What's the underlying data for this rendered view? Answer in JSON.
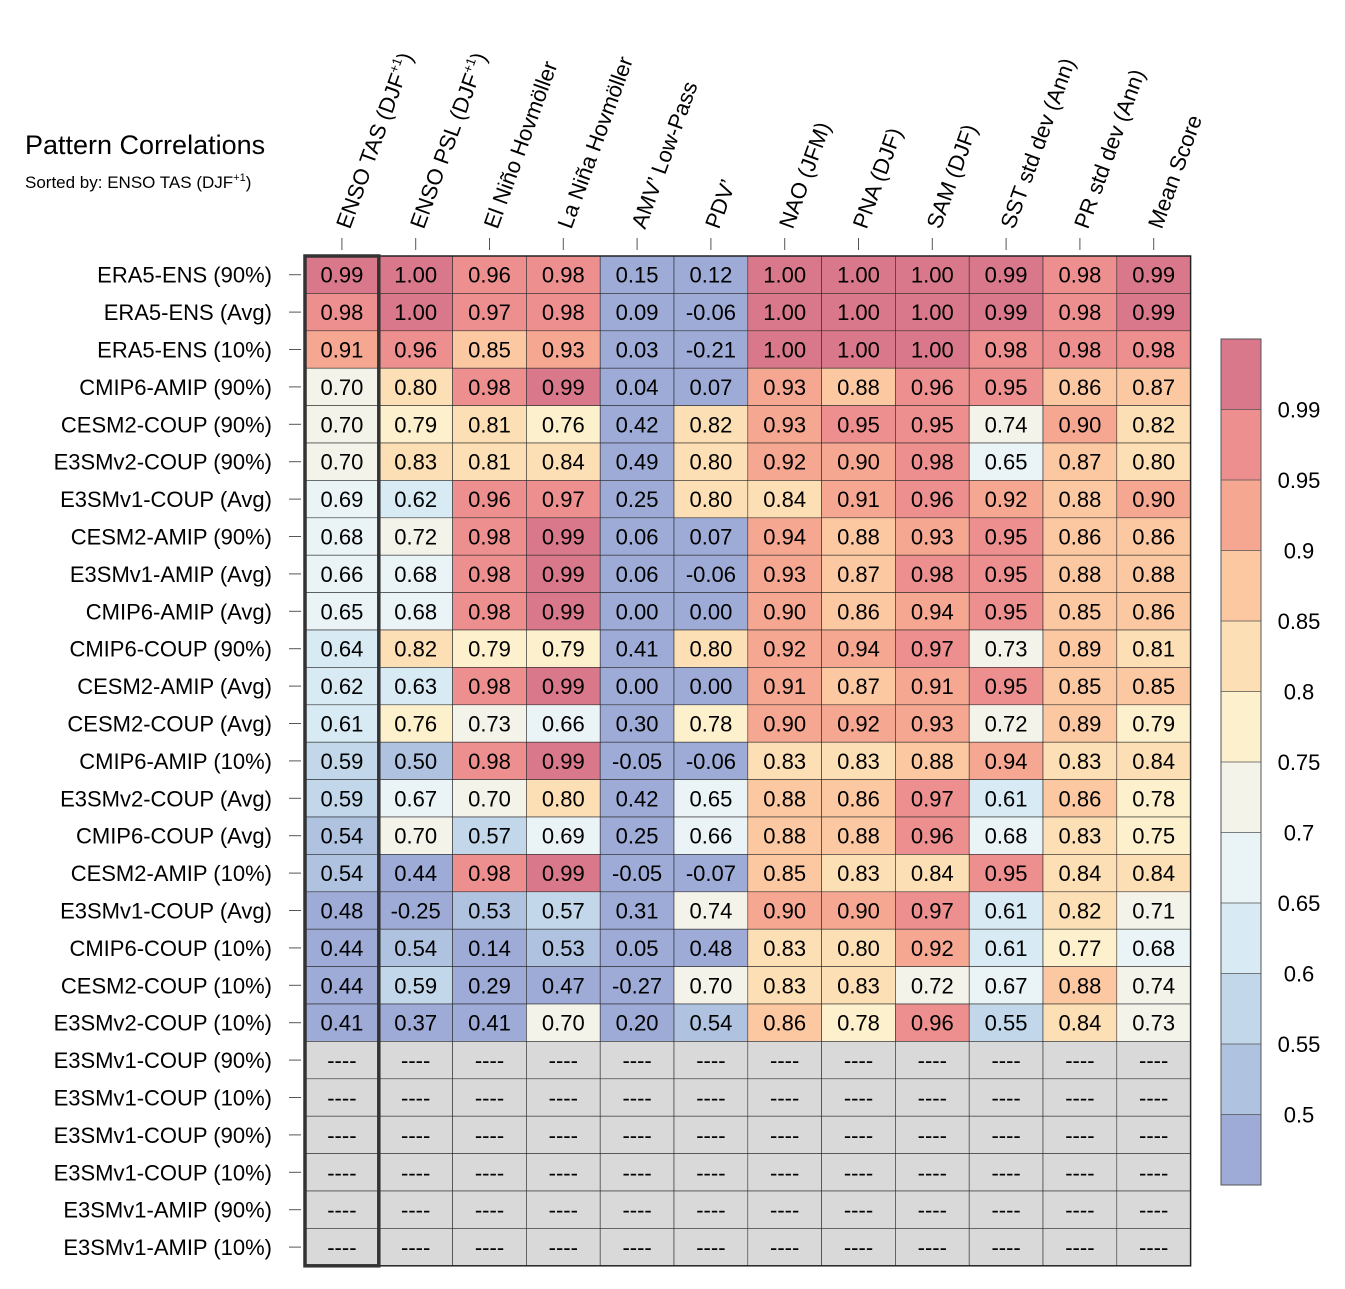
{
  "chart_data": {
    "type": "heatmap",
    "title": "Pattern Correlations",
    "subtitle_prefix": "Sorted by: ENSO TAS (DJF",
    "subtitle_sup": "+1",
    "subtitle_suffix": ")",
    "missing_label": "----",
    "columns": [
      {
        "label": "ENSO TAS (DJF",
        "sup": "+1",
        "suffix": ")"
      },
      {
        "label": "ENSO PSL (DJF",
        "sup": "+1",
        "suffix": ")"
      },
      {
        "label": "El Niño Hovmöller"
      },
      {
        "label": "La Niña Hovmöller"
      },
      {
        "label": "AMV’ Low-Pass"
      },
      {
        "label": "PDV’"
      },
      {
        "label": "NAO (JFM)"
      },
      {
        "label": "PNA (DJF)"
      },
      {
        "label": "SAM (DJF)"
      },
      {
        "label": "SST std dev (Ann)"
      },
      {
        "label": "PR std dev (Ann)"
      },
      {
        "label": "Mean Score"
      }
    ],
    "sorted_column_index": 0,
    "rows": [
      {
        "name": "ERA5-ENS (90%)",
        "values": [
          0.99,
          1.0,
          0.96,
          0.98,
          0.15,
          0.12,
          1.0,
          1.0,
          1.0,
          0.99,
          0.98,
          0.99
        ]
      },
      {
        "name": "ERA5-ENS (Avg)",
        "values": [
          0.98,
          1.0,
          0.97,
          0.98,
          0.09,
          -0.06,
          1.0,
          1.0,
          1.0,
          0.99,
          0.98,
          0.99
        ]
      },
      {
        "name": "ERA5-ENS (10%)",
        "values": [
          0.91,
          0.96,
          0.85,
          0.93,
          0.03,
          -0.21,
          1.0,
          1.0,
          1.0,
          0.98,
          0.98,
          0.98
        ]
      },
      {
        "name": "CMIP6-AMIP (90%)",
        "values": [
          0.7,
          0.8,
          0.98,
          0.99,
          0.04,
          0.07,
          0.93,
          0.88,
          0.96,
          0.95,
          0.86,
          0.87
        ]
      },
      {
        "name": "CESM2-COUP (90%)",
        "values": [
          0.7,
          0.79,
          0.81,
          0.76,
          0.42,
          0.82,
          0.93,
          0.95,
          0.95,
          0.74,
          0.9,
          0.82
        ]
      },
      {
        "name": "E3SMv2-COUP (90%)",
        "values": [
          0.7,
          0.83,
          0.81,
          0.84,
          0.49,
          0.8,
          0.92,
          0.9,
          0.98,
          0.65,
          0.87,
          0.8
        ]
      },
      {
        "name": "E3SMv1-COUP (Avg)",
        "values": [
          0.69,
          0.62,
          0.96,
          0.97,
          0.25,
          0.8,
          0.84,
          0.91,
          0.96,
          0.92,
          0.88,
          0.9
        ]
      },
      {
        "name": "CESM2-AMIP (90%)",
        "values": [
          0.68,
          0.72,
          0.98,
          0.99,
          0.06,
          0.07,
          0.94,
          0.88,
          0.93,
          0.95,
          0.86,
          0.86
        ]
      },
      {
        "name": "E3SMv1-AMIP (Avg)",
        "values": [
          0.66,
          0.68,
          0.98,
          0.99,
          0.06,
          -0.06,
          0.93,
          0.87,
          0.98,
          0.95,
          0.88,
          0.88
        ]
      },
      {
        "name": "CMIP6-AMIP (Avg)",
        "values": [
          0.65,
          0.68,
          0.98,
          0.99,
          0.0,
          0.0,
          0.9,
          0.86,
          0.94,
          0.95,
          0.85,
          0.86
        ]
      },
      {
        "name": "CMIP6-COUP (90%)",
        "values": [
          0.64,
          0.82,
          0.79,
          0.79,
          0.41,
          0.8,
          0.92,
          0.94,
          0.97,
          0.73,
          0.89,
          0.81
        ]
      },
      {
        "name": "CESM2-AMIP (Avg)",
        "values": [
          0.62,
          0.63,
          0.98,
          0.99,
          -0.0,
          0.0,
          0.91,
          0.87,
          0.91,
          0.95,
          0.85,
          0.85
        ]
      },
      {
        "name": "CESM2-COUP (Avg)",
        "values": [
          0.61,
          0.76,
          0.73,
          0.66,
          0.3,
          0.78,
          0.9,
          0.92,
          0.93,
          0.72,
          0.89,
          0.79
        ]
      },
      {
        "name": "CMIP6-AMIP (10%)",
        "values": [
          0.59,
          0.5,
          0.98,
          0.99,
          -0.05,
          -0.06,
          0.83,
          0.83,
          0.88,
          0.94,
          0.83,
          0.84
        ]
      },
      {
        "name": "E3SMv2-COUP (Avg)",
        "values": [
          0.59,
          0.67,
          0.7,
          0.8,
          0.42,
          0.65,
          0.88,
          0.86,
          0.97,
          0.61,
          0.86,
          0.78
        ]
      },
      {
        "name": "CMIP6-COUP (Avg)",
        "values": [
          0.54,
          0.7,
          0.57,
          0.69,
          0.25,
          0.66,
          0.88,
          0.88,
          0.96,
          0.68,
          0.83,
          0.75
        ]
      },
      {
        "name": "CESM2-AMIP (10%)",
        "values": [
          0.54,
          0.44,
          0.98,
          0.99,
          -0.05,
          -0.07,
          0.85,
          0.83,
          0.84,
          0.95,
          0.84,
          0.84
        ]
      },
      {
        "name": "E3SMv1-COUP (Avg)",
        "values": [
          0.48,
          -0.25,
          0.53,
          0.57,
          0.31,
          0.74,
          0.9,
          0.9,
          0.97,
          0.61,
          0.82,
          0.71
        ]
      },
      {
        "name": "CMIP6-COUP (10%)",
        "values": [
          0.44,
          0.54,
          0.14,
          0.53,
          0.05,
          0.48,
          0.83,
          0.8,
          0.92,
          0.61,
          0.77,
          0.68
        ]
      },
      {
        "name": "CESM2-COUP (10%)",
        "values": [
          0.44,
          0.59,
          0.29,
          0.47,
          -0.27,
          0.7,
          0.83,
          0.83,
          0.72,
          0.67,
          0.88,
          0.74
        ]
      },
      {
        "name": "E3SMv2-COUP (10%)",
        "values": [
          0.41,
          0.37,
          0.41,
          0.7,
          0.2,
          0.54,
          0.86,
          0.78,
          0.96,
          0.55,
          0.84,
          0.73
        ]
      },
      {
        "name": "E3SMv1-COUP (90%)",
        "values": [
          null,
          null,
          null,
          null,
          null,
          null,
          null,
          null,
          null,
          null,
          null,
          null
        ]
      },
      {
        "name": "E3SMv1-COUP (10%)",
        "values": [
          null,
          null,
          null,
          null,
          null,
          null,
          null,
          null,
          null,
          null,
          null,
          null
        ]
      },
      {
        "name": "E3SMv1-COUP (90%)",
        "values": [
          null,
          null,
          null,
          null,
          null,
          null,
          null,
          null,
          null,
          null,
          null,
          null
        ]
      },
      {
        "name": "E3SMv1-COUP (10%)",
        "values": [
          null,
          null,
          null,
          null,
          null,
          null,
          null,
          null,
          null,
          null,
          null,
          null
        ]
      },
      {
        "name": "E3SMv1-AMIP (90%)",
        "values": [
          null,
          null,
          null,
          null,
          null,
          null,
          null,
          null,
          null,
          null,
          null,
          null
        ]
      },
      {
        "name": "E3SMv1-AMIP (10%)",
        "values": [
          null,
          null,
          null,
          null,
          null,
          null,
          null,
          null,
          null,
          null,
          null,
          null
        ]
      }
    ],
    "colorbar": {
      "levels": [
        0.5,
        0.55,
        0.6,
        0.65,
        0.7,
        0.75,
        0.8,
        0.85,
        0.9,
        0.95,
        0.99
      ],
      "tick_labels": [
        "0.5",
        "0.55",
        "0.6",
        "0.65",
        "0.7",
        "0.75",
        "0.8",
        "0.85",
        "0.9",
        "0.95",
        "0.99"
      ],
      "colors": [
        "#9dabd6",
        "#afc3e1",
        "#c2d8ea",
        "#d8eaf3",
        "#eaf3f6",
        "#f4f3ea",
        "#fdf0cc",
        "#fddfb5",
        "#fbc8a2",
        "#f6a791",
        "#ec8f8e",
        "#d9788a"
      ],
      "missing_color": "#d9d9d9"
    }
  }
}
